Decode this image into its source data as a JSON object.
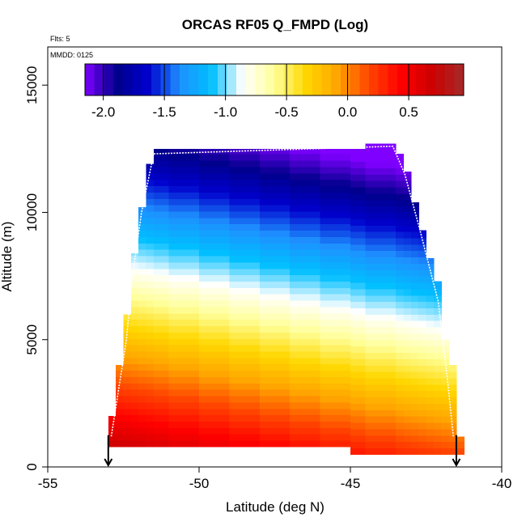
{
  "chart_data": {
    "type": "heatmap",
    "title": "ORCAS RF05 Q_FMPD (Log)",
    "annotation_flts": "Flts: 5",
    "annotation_mmdd": "MMDD: 0125",
    "xlabel": "Latitude (deg N)",
    "ylabel": "Altitude (m)",
    "xlim": [
      -55,
      -40
    ],
    "ylim": [
      0,
      16500
    ],
    "x_ticks": [
      -55,
      -50,
      -45,
      -40
    ],
    "x_tick_labels": [
      "-55",
      "-50",
      "-45",
      "-40"
    ],
    "y_ticks": [
      0,
      5000,
      10000,
      15000
    ],
    "y_tick_labels": [
      "0",
      "5000",
      "10000",
      "15000"
    ],
    "colorbar": {
      "range": [
        -2.15,
        0.95
      ],
      "ticks": [
        -2.0,
        -1.5,
        -1.0,
        -0.5,
        0.0,
        0.5
      ],
      "tick_labels": [
        "-2.0",
        "-1.5",
        "-1.0",
        "-0.5",
        "0.0",
        "0.5"
      ],
      "colors": [
        "#7f00ff",
        "#00008b",
        "#0000cd",
        "#1e90ff",
        "#00bfff",
        "#ffffff",
        "#ffff99",
        "#ffd700",
        "#ffa500",
        "#ff4500",
        "#ff0000",
        "#cc0000",
        "#a52a2a"
      ]
    },
    "field_model": {
      "value_at_surface": 0.6,
      "value_at_top": -2.1,
      "tilt_per_deg_lat": 0.05,
      "reference_lat": -47.5
    },
    "x_bins": [
      {
        "x0": -53.0,
        "x1": -52.75,
        "ybottom": 800,
        "ytop": 2000
      },
      {
        "x0": -52.75,
        "x1": -52.5,
        "ybottom": 800,
        "ytop": 4000
      },
      {
        "x0": -52.5,
        "x1": -52.25,
        "ybottom": 800,
        "ytop": 6000
      },
      {
        "x0": -52.25,
        "x1": -52.0,
        "ybottom": 800,
        "ytop": 8400
      },
      {
        "x0": -52.0,
        "x1": -51.75,
        "ybottom": 800,
        "ytop": 10200
      },
      {
        "x0": -51.75,
        "x1": -51.5,
        "ybottom": 800,
        "ytop": 11900
      },
      {
        "x0": -51.5,
        "x1": -51.0,
        "ybottom": 800,
        "ytop": 12500
      },
      {
        "x0": -51.0,
        "x1": -50.0,
        "ybottom": 800,
        "ytop": 12500
      },
      {
        "x0": -50.0,
        "x1": -49.0,
        "ybottom": 800,
        "ytop": 12500
      },
      {
        "x0": -49.0,
        "x1": -48.0,
        "ybottom": 800,
        "ytop": 12500
      },
      {
        "x0": -48.0,
        "x1": -47.0,
        "ybottom": 800,
        "ytop": 12500
      },
      {
        "x0": -47.0,
        "x1": -46.0,
        "ybottom": 800,
        "ytop": 12500
      },
      {
        "x0": -46.0,
        "x1": -45.0,
        "ybottom": 800,
        "ytop": 12500
      },
      {
        "x0": -45.0,
        "x1": -44.5,
        "ybottom": 500,
        "ytop": 12500
      },
      {
        "x0": -44.5,
        "x1": -43.5,
        "ybottom": 500,
        "ytop": 12700
      },
      {
        "x0": -43.5,
        "x1": -43.25,
        "ybottom": 500,
        "ytop": 12300
      },
      {
        "x0": -43.25,
        "x1": -43.0,
        "ybottom": 500,
        "ytop": 11600
      },
      {
        "x0": -43.0,
        "x1": -42.75,
        "ybottom": 500,
        "ytop": 10400
      },
      {
        "x0": -42.75,
        "x1": -42.5,
        "ybottom": 500,
        "ytop": 9300
      },
      {
        "x0": -42.5,
        "x1": -42.25,
        "ybottom": 500,
        "ytop": 8200
      },
      {
        "x0": -42.25,
        "x1": -42.0,
        "ybottom": 500,
        "ytop": 7300
      },
      {
        "x0": -42.0,
        "x1": -41.75,
        "ybottom": 500,
        "ytop": 5000
      },
      {
        "x0": -41.75,
        "x1": -41.5,
        "ybottom": 500,
        "ytop": 4000
      },
      {
        "x0": -41.5,
        "x1": -41.25,
        "ybottom": 500,
        "ytop": 1200
      }
    ],
    "flight_track": [
      {
        "x": -52.9,
        "y": 1200
      },
      {
        "x": -52.4,
        "y": 5000
      },
      {
        "x": -52.2,
        "y": 7500
      },
      {
        "x": -51.9,
        "y": 10000
      },
      {
        "x": -51.5,
        "y": 12300
      },
      {
        "x": -43.6,
        "y": 12600
      },
      {
        "x": -43.2,
        "y": 11500
      },
      {
        "x": -42.7,
        "y": 9300
      },
      {
        "x": -42.1,
        "y": 6500
      },
      {
        "x": -41.8,
        "y": 3500
      },
      {
        "x": -41.6,
        "y": 1200
      }
    ],
    "markers": [
      {
        "x": -53.0,
        "y": 550
      },
      {
        "x": -41.5,
        "y": 550
      }
    ]
  }
}
